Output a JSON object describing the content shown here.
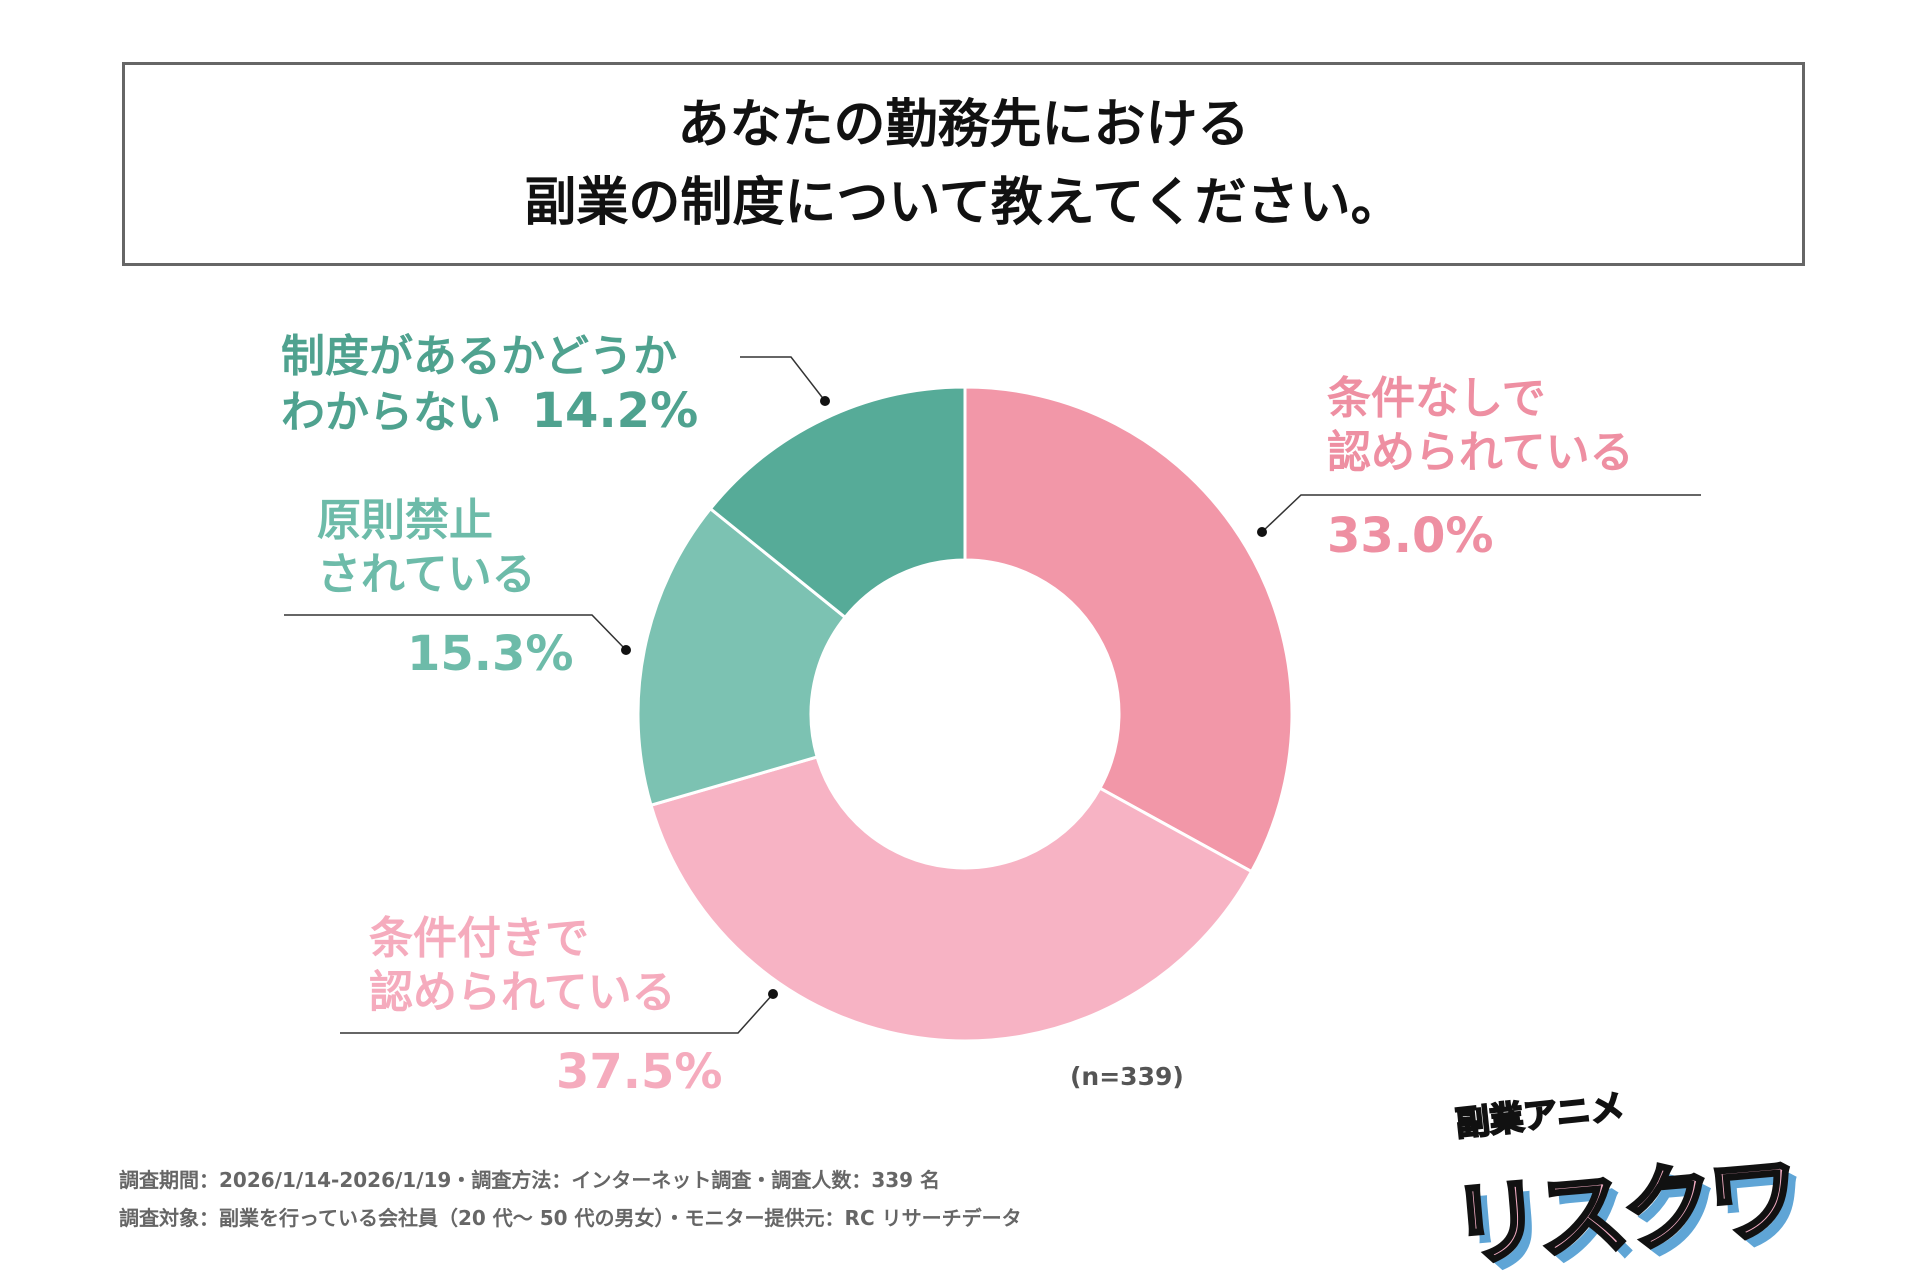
{
  "title": [
    "あなたの勤務先における",
    "副業の制度について教えてください。"
  ],
  "chart_data": {
    "type": "pie",
    "donut": true,
    "title": "あなたの勤務先における副業の制度について教えてください。",
    "start": "top, clockwise",
    "categories": [
      "条件なしで認められている",
      "条件付きで認められている",
      "原則禁止されている",
      "制度があるかどうかわからない"
    ],
    "values": [
      33.0,
      37.5,
      15.3,
      14.2
    ],
    "labels": [
      {
        "lines": [
          "条件なしで",
          "認められている"
        ],
        "pct": "33.0%"
      },
      {
        "lines": [
          "条件付きで",
          "認められている"
        ],
        "pct": "37.5%"
      },
      {
        "lines": [
          "原則禁止",
          "されている"
        ],
        "pct": "15.3%"
      },
      {
        "lines": [
          "制度があるかどうか",
          "わからない"
        ],
        "pct": "14.2%"
      }
    ],
    "colors": [
      "#f297a8",
      "#f7b3c4",
      "#7cc2b2",
      "#56ab98"
    ],
    "label_colors": [
      "#ee8fa2",
      "#f5abbd",
      "#6dbba9",
      "#4fa28f"
    ],
    "n_note": "(n=339)"
  },
  "footer": [
    "調査期間：2026/1/14-2026/1/19・調査方法：インターネット調査・調査人数：339 名",
    "調査対象：副業を行っている会社員（20 代～ 50 代の男女）・モニター提供元：RC リサーチデータ"
  ],
  "logo": {
    "sub": "副業アニメ",
    "main": "リスクワ"
  }
}
